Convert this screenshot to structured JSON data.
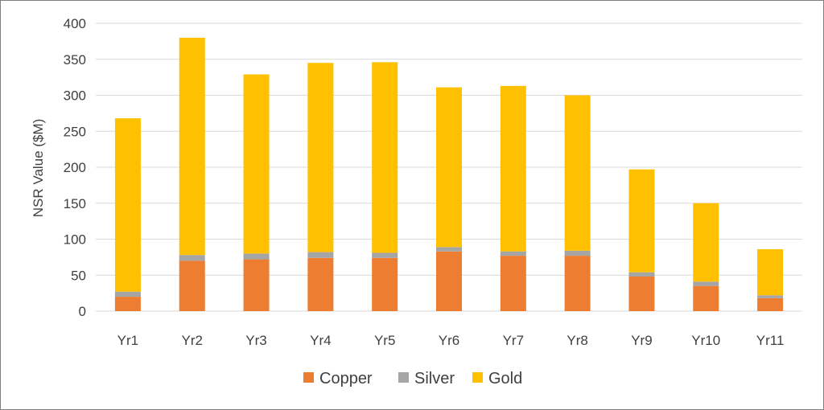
{
  "chart_data": {
    "type": "bar",
    "stacked": true,
    "categories": [
      "Yr1",
      "Yr2",
      "Yr3",
      "Yr4",
      "Yr5",
      "Yr6",
      "Yr7",
      "Yr8",
      "Yr9",
      "Yr10",
      "Yr11"
    ],
    "series": [
      {
        "name": "Copper",
        "color": "#ED7D31",
        "values": [
          20,
          70,
          72,
          74,
          74,
          83,
          77,
          77,
          48,
          35,
          18
        ]
      },
      {
        "name": "Silver",
        "color": "#A5A5A5",
        "values": [
          7,
          8,
          8,
          8,
          7,
          6,
          6,
          7,
          6,
          6,
          4
        ]
      },
      {
        "name": "Gold",
        "color": "#FFC000",
        "values": [
          241,
          302,
          249,
          263,
          265,
          222,
          230,
          216,
          143,
          109,
          64
        ]
      }
    ],
    "title": "",
    "xlabel": "",
    "ylabel": "NSR Value ($M)",
    "ylim": [
      0,
      400
    ],
    "yticks": [
      0,
      50,
      100,
      150,
      200,
      250,
      300,
      350,
      400
    ],
    "grid": true,
    "legend": "bottom"
  }
}
